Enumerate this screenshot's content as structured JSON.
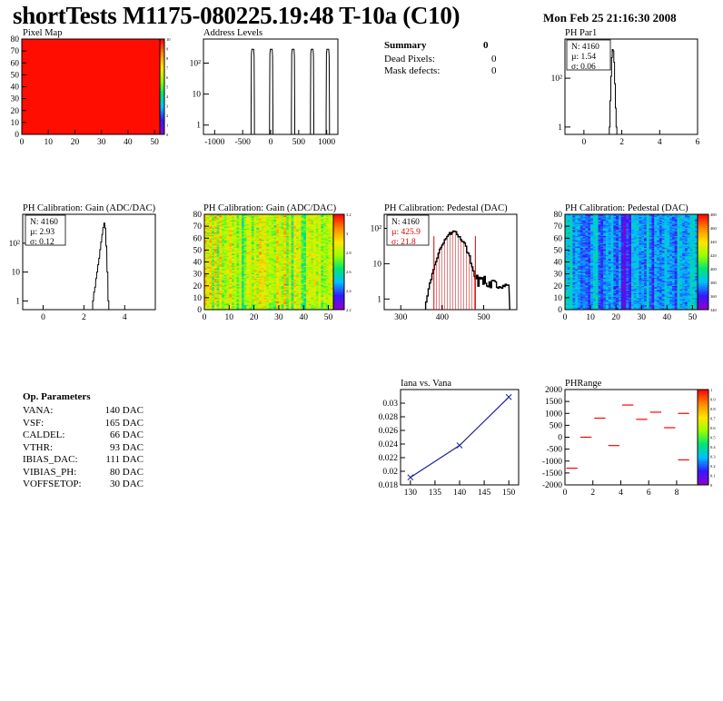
{
  "header": {
    "title": "shortTests M1175-080225.19:48 T-10a (C10)",
    "date": "Mon Feb 25 21:16:30 2008"
  },
  "colors": {
    "red": "#ff0000",
    "line_blue": "#1f1f9a"
  },
  "summary": {
    "title": "Summary",
    "total": "0",
    "rows": [
      {
        "label": "Dead Pixels:",
        "value": "0"
      },
      {
        "label": "Mask defects:",
        "value": "0"
      }
    ]
  },
  "op_parameters": {
    "title": "Op. Parameters",
    "rows": [
      {
        "name": "VANA:",
        "value": "140 DAC"
      },
      {
        "name": "VSF:",
        "value": "165 DAC"
      },
      {
        "name": "CALDEL:",
        "value": "66 DAC"
      },
      {
        "name": "VTHR:",
        "value": "93 DAC"
      },
      {
        "name": "IBIAS_DAC:",
        "value": "111 DAC"
      },
      {
        "name": "VIBIAS_PH:",
        "value": "80 DAC"
      },
      {
        "name": "VOFFSETOP:",
        "value": "30 DAC"
      }
    ]
  },
  "chart_data": [
    {
      "id": "pixelmap",
      "type": "heatmap",
      "title": "Pixel Map",
      "xlim": [
        0,
        52
      ],
      "ylim": [
        0,
        80
      ],
      "xticks": [
        "0",
        "10",
        "20",
        "30",
        "40",
        "50"
      ],
      "yticks": [
        "0",
        "10",
        "20",
        "30",
        "40",
        "50",
        "60",
        "70",
        "80"
      ],
      "uniform_value": 10,
      "colorbar": {
        "min": 0,
        "max": 10,
        "labels": [
          "0",
          "1",
          "2",
          "3",
          "4",
          "5",
          "6",
          "7",
          "8",
          "9",
          "10"
        ]
      }
    },
    {
      "id": "addr",
      "type": "bar",
      "title": "Address Levels",
      "xlim": [
        -1200,
        1200
      ],
      "ylog": true,
      "ylim": [
        0.5,
        600
      ],
      "xticks": [
        "-1000",
        "-500",
        "0",
        "500",
        "1000"
      ],
      "yticks": [
        "1",
        "10",
        "10²"
      ],
      "peaks": [
        {
          "x": -320,
          "width": 60,
          "height": 280
        },
        {
          "x": 10,
          "width": 60,
          "height": 280
        },
        {
          "x": 400,
          "width": 60,
          "height": 280
        },
        {
          "x": 740,
          "width": 60,
          "height": 280
        },
        {
          "x": 1020,
          "width": 60,
          "height": 280
        }
      ]
    },
    {
      "id": "phpar1",
      "type": "bar",
      "title": "PH Par1",
      "xlim": [
        -1,
        6
      ],
      "ylog": true,
      "ylim": [
        0.5,
        4000
      ],
      "xticks": [
        "0",
        "2",
        "4",
        "6"
      ],
      "yticks": [
        "1",
        "10²"
      ],
      "stats": {
        "entries": "N: 4160",
        "mean": "µ: 1.54",
        "rms": "σ: 0.06"
      },
      "bins": [
        [
          1.36,
          1
        ],
        [
          1.4,
          12
        ],
        [
          1.44,
          120
        ],
        [
          1.48,
          700
        ],
        [
          1.52,
          1500
        ],
        [
          1.56,
          1300
        ],
        [
          1.6,
          450
        ],
        [
          1.64,
          60
        ],
        [
          1.68,
          6
        ],
        [
          1.72,
          1
        ]
      ]
    },
    {
      "id": "gainhist",
      "type": "bar",
      "title": "PH Calibration: Gain (ADC/DAC)",
      "xlim": [
        -1,
        5.5
      ],
      "ylog": true,
      "ylim": [
        0.5,
        1000
      ],
      "xticks": [
        "0",
        "2",
        "4"
      ],
      "yticks": [
        "1",
        "10",
        "10²"
      ],
      "stats": {
        "entries": "N: 4160",
        "mean": "µ: 2.93",
        "rms": "σ: 0.12"
      },
      "bins": [
        [
          2.45,
          1
        ],
        [
          2.5,
          2
        ],
        [
          2.55,
          3
        ],
        [
          2.6,
          6
        ],
        [
          2.65,
          10
        ],
        [
          2.7,
          18
        ],
        [
          2.75,
          30
        ],
        [
          2.8,
          60
        ],
        [
          2.85,
          110
        ],
        [
          2.9,
          200
        ],
        [
          2.95,
          350
        ],
        [
          3.0,
          500
        ],
        [
          3.05,
          330
        ],
        [
          3.1,
          80
        ],
        [
          3.15,
          10
        ],
        [
          3.2,
          1
        ]
      ]
    },
    {
      "id": "gainmap",
      "type": "heatmap",
      "title": "PH Calibration: Gain (ADC/DAC)",
      "xlim": [
        0,
        52
      ],
      "ylim": [
        0,
        80
      ],
      "xticks": [
        "0",
        "10",
        "20",
        "30",
        "40",
        "50"
      ],
      "yticks": [
        "0",
        "10",
        "20",
        "30",
        "40",
        "50",
        "60",
        "70",
        "80"
      ],
      "colorbar": {
        "min": 2.2,
        "max": 3.2,
        "labels": [
          "2.2",
          "2.4",
          "2.6",
          "2.8",
          "3",
          "3.2"
        ]
      }
    },
    {
      "id": "pedhist",
      "type": "bar",
      "title": "PH Calibration: Pedestal (DAC)",
      "xlim": [
        260,
        580
      ],
      "ylog": true,
      "ylim": [
        0.5,
        250
      ],
      "xticks": [
        "300",
        "400",
        "500"
      ],
      "yticks": [
        "1",
        "10",
        "10²"
      ],
      "stats": {
        "entries": "N: 4160",
        "mean": "µ: 425.9",
        "rms": "σ: 21.8"
      },
      "cut_lines": [
        380,
        480
      ],
      "mean": 425.9,
      "rms": 21.8,
      "peak": 75
    },
    {
      "id": "pedmap",
      "type": "heatmap",
      "title": "PH Calibration: Pedestal (DAC)",
      "xlim": [
        0,
        52
      ],
      "ylim": [
        0,
        80
      ],
      "xticks": [
        "0",
        "10",
        "20",
        "30",
        "40",
        "50"
      ],
      "yticks": [
        "0",
        "10",
        "20",
        "30",
        "40",
        "50",
        "60",
        "70",
        "80"
      ],
      "colorbar": {
        "min": 340,
        "max": 480,
        "labels": [
          "340",
          "360",
          "380",
          "400",
          "420",
          "440",
          "460",
          "480"
        ]
      }
    },
    {
      "id": "iana",
      "type": "line",
      "title": "Iana vs. Vana",
      "xlim": [
        128,
        152
      ],
      "ylim": [
        0.018,
        0.032
      ],
      "xticks": [
        "130",
        "135",
        "140",
        "145",
        "150"
      ],
      "yticks": [
        "0.018",
        "0.02",
        "0.022",
        "0.024",
        "0.026",
        "0.028",
        "0.03"
      ],
      "x": [
        130,
        140,
        150
      ],
      "y": [
        0.0191,
        0.0238,
        0.0309
      ]
    },
    {
      "id": "phrange",
      "type": "bar",
      "title": "PHRange",
      "xlim": [
        0,
        9.5
      ],
      "ylim": [
        -2000,
        2000
      ],
      "xticks": [
        "0",
        "2",
        "4",
        "6",
        "8"
      ],
      "yticks": [
        "-2000",
        "-1500",
        "-1000",
        "-500",
        "0",
        "500",
        "1000",
        "1500",
        "2000"
      ],
      "segments": [
        [
          0,
          1,
          -1300
        ],
        [
          1,
          2,
          0
        ],
        [
          2,
          3,
          800
        ],
        [
          3,
          4,
          -350
        ],
        [
          4,
          5,
          1350
        ],
        [
          5,
          6,
          750
        ],
        [
          6,
          7,
          1050
        ],
        [
          7,
          8,
          400
        ],
        [
          8,
          9,
          1000
        ],
        [
          8,
          9,
          -950
        ]
      ],
      "colorbar": {
        "labels": [
          "0",
          "0.1",
          "0.2",
          "0.3",
          "0.4",
          "0.5",
          "0.6",
          "0.7",
          "0.8",
          "0.9",
          "1"
        ]
      }
    }
  ]
}
